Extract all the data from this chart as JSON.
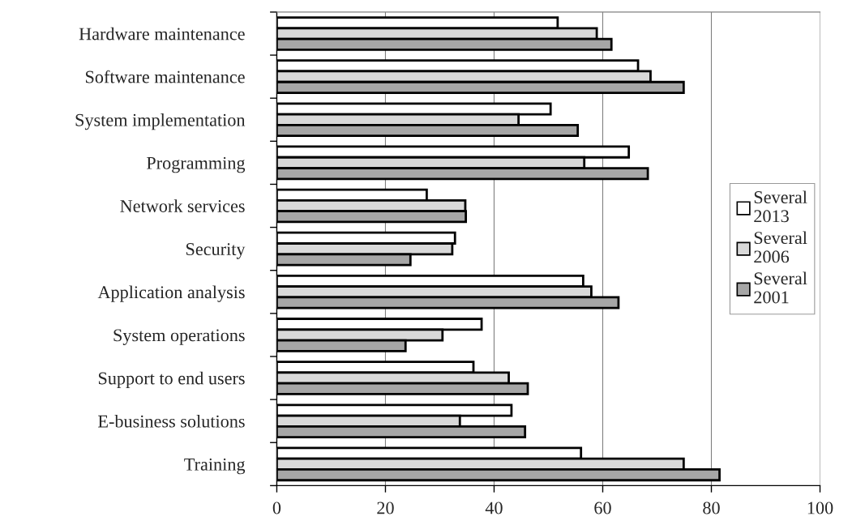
{
  "chart_data": {
    "type": "bar",
    "orientation": "horizontal",
    "categories": [
      "Hardware maintenance",
      "Software maintenance",
      "System implementation",
      "Programming",
      "Network services",
      "Security",
      "Application analysis",
      "System operations",
      "Support to end users",
      "E-business solutions",
      "Training"
    ],
    "series": [
      {
        "name": "Several 2013",
        "color": "#ffffff",
        "values": [
          51.7,
          66.5,
          50.4,
          64.8,
          27.6,
          32.8,
          56.4,
          37.7,
          36.2,
          43.2,
          56.0
        ]
      },
      {
        "name": "Several 2006",
        "color": "#d9d9d9",
        "values": [
          58.9,
          68.8,
          44.5,
          56.6,
          34.7,
          32.3,
          57.9,
          30.5,
          42.7,
          33.7,
          74.9
        ]
      },
      {
        "name": "Several 2001",
        "color": "#a6a6a6",
        "values": [
          61.6,
          74.9,
          55.4,
          68.3,
          34.8,
          24.6,
          62.9,
          23.7,
          46.2,
          45.7,
          81.5
        ]
      }
    ],
    "xlim": [
      0,
      100
    ],
    "xticks": [
      0,
      20,
      40,
      60,
      80,
      100
    ],
    "grid": "x",
    "legend": "right"
  }
}
